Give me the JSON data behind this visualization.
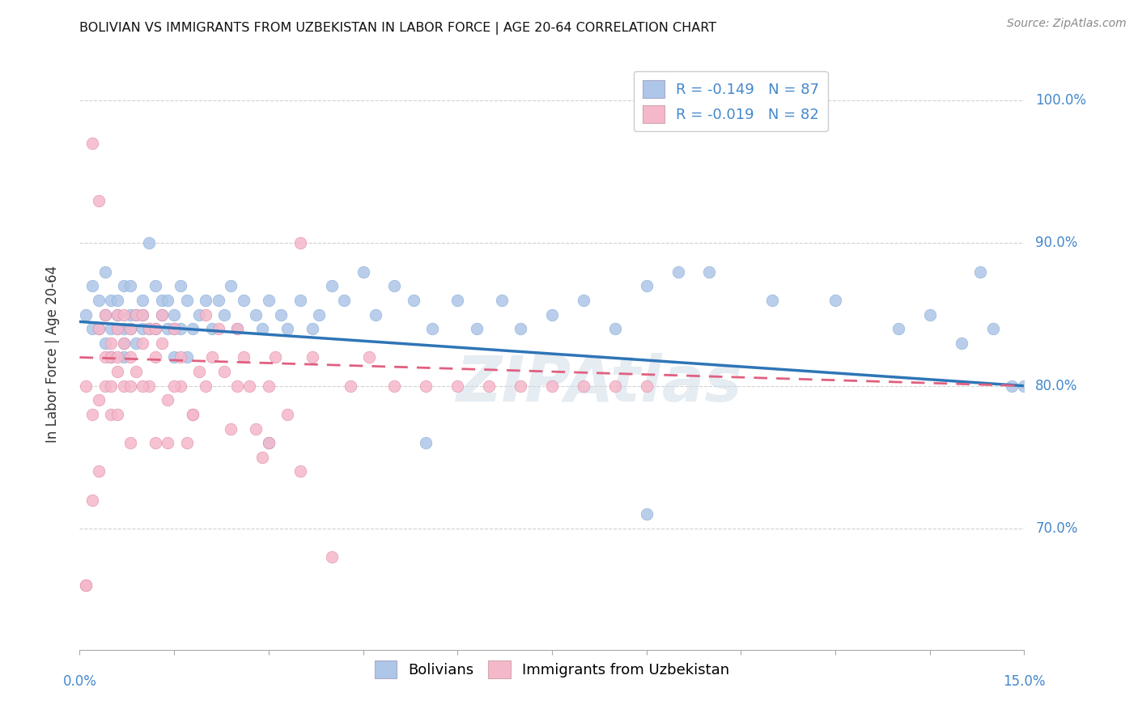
{
  "title": "BOLIVIAN VS IMMIGRANTS FROM UZBEKISTAN IN LABOR FORCE | AGE 20-64 CORRELATION CHART",
  "source": "Source: ZipAtlas.com",
  "ylabel": "In Labor Force | Age 20-64",
  "ytick_labels": [
    "100.0%",
    "90.0%",
    "80.0%",
    "70.0%"
  ],
  "ytick_values": [
    1.0,
    0.9,
    0.8,
    0.7
  ],
  "xmin": 0.0,
  "xmax": 0.15,
  "ymin": 0.615,
  "ymax": 1.03,
  "blue_color": "#aec6e8",
  "pink_color": "#f5b8cb",
  "blue_line_color": "#2e75b6",
  "pink_line_color": "#e06080",
  "legend_blue_label": "R = -0.149   N = 87",
  "legend_pink_label": "R = -0.019   N = 82",
  "legend_bottom_blue": "Bolivians",
  "legend_bottom_pink": "Immigrants from Uzbekistan",
  "R_blue": -0.149,
  "N_blue": 87,
  "R_pink": -0.019,
  "N_pink": 82,
  "axis_color": "#4488cc",
  "watermark": "ZIPAtlas",
  "title_fontsize": 12,
  "marker_size": 110,
  "blue_scatter_x": [
    0.001,
    0.002,
    0.002,
    0.003,
    0.003,
    0.004,
    0.004,
    0.004,
    0.005,
    0.005,
    0.005,
    0.006,
    0.006,
    0.006,
    0.007,
    0.007,
    0.007,
    0.007,
    0.008,
    0.008,
    0.008,
    0.009,
    0.009,
    0.01,
    0.01,
    0.01,
    0.011,
    0.011,
    0.012,
    0.012,
    0.013,
    0.013,
    0.014,
    0.014,
    0.015,
    0.015,
    0.016,
    0.016,
    0.017,
    0.017,
    0.018,
    0.019,
    0.02,
    0.021,
    0.022,
    0.023,
    0.024,
    0.025,
    0.026,
    0.028,
    0.029,
    0.03,
    0.032,
    0.033,
    0.035,
    0.037,
    0.038,
    0.04,
    0.042,
    0.045,
    0.047,
    0.05,
    0.053,
    0.056,
    0.06,
    0.063,
    0.067,
    0.07,
    0.075,
    0.08,
    0.085,
    0.09,
    0.095,
    0.1,
    0.11,
    0.12,
    0.13,
    0.135,
    0.14,
    0.143,
    0.145,
    0.148,
    0.15,
    0.09,
    0.055,
    0.03,
    0.015
  ],
  "blue_scatter_y": [
    0.85,
    0.84,
    0.87,
    0.86,
    0.84,
    0.88,
    0.85,
    0.83,
    0.86,
    0.84,
    0.82,
    0.84,
    0.86,
    0.85,
    0.87,
    0.84,
    0.83,
    0.82,
    0.85,
    0.84,
    0.87,
    0.85,
    0.83,
    0.86,
    0.84,
    0.85,
    0.9,
    0.84,
    0.87,
    0.84,
    0.86,
    0.85,
    0.84,
    0.86,
    0.85,
    0.84,
    0.87,
    0.84,
    0.86,
    0.82,
    0.84,
    0.85,
    0.86,
    0.84,
    0.86,
    0.85,
    0.87,
    0.84,
    0.86,
    0.85,
    0.84,
    0.86,
    0.85,
    0.84,
    0.86,
    0.84,
    0.85,
    0.87,
    0.86,
    0.88,
    0.85,
    0.87,
    0.86,
    0.84,
    0.86,
    0.84,
    0.86,
    0.84,
    0.85,
    0.86,
    0.84,
    0.87,
    0.88,
    0.88,
    0.86,
    0.86,
    0.84,
    0.85,
    0.83,
    0.88,
    0.84,
    0.8,
    0.8,
    0.71,
    0.76,
    0.76,
    0.82
  ],
  "pink_scatter_x": [
    0.001,
    0.001,
    0.002,
    0.002,
    0.003,
    0.003,
    0.003,
    0.004,
    0.004,
    0.004,
    0.005,
    0.005,
    0.005,
    0.006,
    0.006,
    0.006,
    0.006,
    0.007,
    0.007,
    0.007,
    0.008,
    0.008,
    0.008,
    0.009,
    0.009,
    0.01,
    0.01,
    0.011,
    0.011,
    0.012,
    0.012,
    0.013,
    0.013,
    0.014,
    0.014,
    0.015,
    0.016,
    0.016,
    0.017,
    0.018,
    0.019,
    0.02,
    0.021,
    0.022,
    0.023,
    0.024,
    0.025,
    0.026,
    0.027,
    0.028,
    0.029,
    0.03,
    0.031,
    0.033,
    0.035,
    0.037,
    0.04,
    0.043,
    0.046,
    0.05,
    0.055,
    0.06,
    0.065,
    0.07,
    0.075,
    0.08,
    0.085,
    0.09,
    0.03,
    0.025,
    0.018,
    0.012,
    0.008,
    0.005,
    0.003,
    0.002,
    0.001,
    0.006,
    0.01,
    0.015,
    0.02,
    0.035
  ],
  "pink_scatter_y": [
    0.66,
    0.8,
    0.97,
    0.78,
    0.84,
    0.93,
    0.79,
    0.82,
    0.8,
    0.85,
    0.82,
    0.8,
    0.83,
    0.84,
    0.81,
    0.82,
    0.85,
    0.8,
    0.83,
    0.85,
    0.82,
    0.84,
    0.8,
    0.85,
    0.81,
    0.83,
    0.85,
    0.8,
    0.84,
    0.82,
    0.84,
    0.83,
    0.85,
    0.76,
    0.79,
    0.84,
    0.82,
    0.8,
    0.76,
    0.78,
    0.81,
    0.85,
    0.82,
    0.84,
    0.81,
    0.77,
    0.84,
    0.82,
    0.8,
    0.77,
    0.75,
    0.8,
    0.82,
    0.78,
    0.74,
    0.82,
    0.68,
    0.8,
    0.82,
    0.8,
    0.8,
    0.8,
    0.8,
    0.8,
    0.8,
    0.8,
    0.8,
    0.8,
    0.76,
    0.8,
    0.78,
    0.76,
    0.76,
    0.78,
    0.74,
    0.72,
    0.66,
    0.78,
    0.8,
    0.8,
    0.8,
    0.9
  ]
}
